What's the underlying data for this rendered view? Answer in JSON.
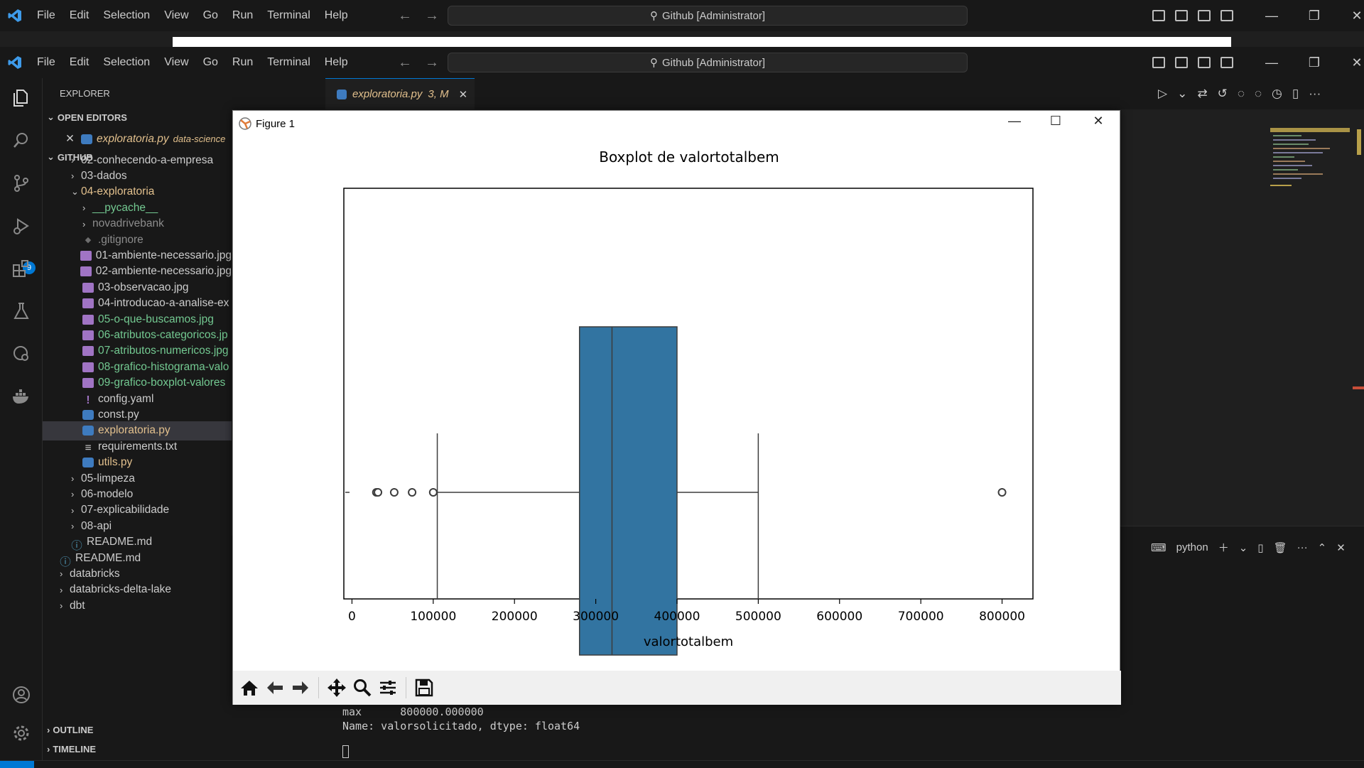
{
  "titlebar": {
    "menu": [
      "File",
      "Edit",
      "Selection",
      "View",
      "Go",
      "Run",
      "Terminal",
      "Help"
    ],
    "command_center": "Github [Administrator]"
  },
  "activity": {
    "scm_badge": "9"
  },
  "sidebar": {
    "header": "EXPLORER",
    "open_editors_label": "OPEN EDITORS",
    "open_editor_file": "exploratoria.py",
    "open_editor_path": "data-science",
    "github_label": "GITHUB",
    "outline_label": "OUTLINE",
    "timeline_label": "TIMELINE",
    "tree": [
      {
        "label": "02-conhecendo-a-empresa",
        "depth": 1,
        "type": "folder",
        "color": "#cccccc"
      },
      {
        "label": "03-dados",
        "depth": 1,
        "type": "folder",
        "color": "#cccccc"
      },
      {
        "label": "04-exploratoria",
        "depth": 1,
        "type": "folder-open",
        "color": "#e2c08d"
      },
      {
        "label": "__pycache__",
        "depth": 2,
        "type": "folder",
        "color": "#73c991"
      },
      {
        "label": "novadrivebank",
        "depth": 2,
        "type": "folder",
        "color": "#8c8c8c"
      },
      {
        "label": ".gitignore",
        "depth": 2,
        "type": "git",
        "color": "#8c8c8c"
      },
      {
        "label": "01-ambiente-necessario.jpg",
        "depth": 2,
        "type": "image",
        "color": "#cccccc"
      },
      {
        "label": "02-ambiente-necessario.jpg",
        "depth": 2,
        "type": "image",
        "color": "#cccccc"
      },
      {
        "label": "03-observacao.jpg",
        "depth": 2,
        "type": "image",
        "color": "#cccccc"
      },
      {
        "label": "04-introducao-a-analise-ex",
        "depth": 2,
        "type": "image",
        "color": "#cccccc"
      },
      {
        "label": "05-o-que-buscamos.jpg",
        "depth": 2,
        "type": "image",
        "color": "#73c991"
      },
      {
        "label": "06-atributos-categoricos.jp",
        "depth": 2,
        "type": "image",
        "color": "#73c991"
      },
      {
        "label": "07-atributos-numericos.jpg",
        "depth": 2,
        "type": "image",
        "color": "#73c991"
      },
      {
        "label": "08-grafico-histograma-valo",
        "depth": 2,
        "type": "image",
        "color": "#73c991"
      },
      {
        "label": "09-grafico-boxplot-valores",
        "depth": 2,
        "type": "image",
        "color": "#73c991"
      },
      {
        "label": "config.yaml",
        "depth": 2,
        "type": "yaml",
        "color": "#cccccc"
      },
      {
        "label": "const.py",
        "depth": 2,
        "type": "python",
        "color": "#cccccc"
      },
      {
        "label": "exploratoria.py",
        "depth": 2,
        "type": "python",
        "color": "#e2c08d",
        "selected": true
      },
      {
        "label": "requirements.txt",
        "depth": 2,
        "type": "text",
        "color": "#cccccc"
      },
      {
        "label": "utils.py",
        "depth": 2,
        "type": "python",
        "color": "#e2c08d"
      },
      {
        "label": "05-limpeza",
        "depth": 1,
        "type": "folder",
        "color": "#cccccc"
      },
      {
        "label": "06-modelo",
        "depth": 1,
        "type": "folder",
        "color": "#cccccc"
      },
      {
        "label": "07-explicabilidade",
        "depth": 1,
        "type": "folder",
        "color": "#cccccc"
      },
      {
        "label": "08-api",
        "depth": 1,
        "type": "folder",
        "color": "#cccccc"
      },
      {
        "label": "README.md",
        "depth": 1,
        "type": "info",
        "color": "#cccccc"
      },
      {
        "label": "README.md",
        "depth": 0,
        "type": "info",
        "color": "#cccccc"
      },
      {
        "label": "databricks",
        "depth": 0,
        "type": "folder",
        "color": "#cccccc"
      },
      {
        "label": "databricks-delta-lake",
        "depth": 0,
        "type": "folder",
        "color": "#cccccc"
      },
      {
        "label": "dbt",
        "depth": 0,
        "type": "folder",
        "color": "#cccccc"
      }
    ]
  },
  "editor": {
    "tab_label": "exploratoria.py",
    "tab_status": "3, M"
  },
  "terminal": {
    "lines": [
      "max      800000.000000",
      "Name: valorsolicitado, dtype: float64"
    ],
    "shell": "python"
  },
  "figure": {
    "window_title": "Figure 1",
    "chart_data": {
      "type": "boxplot",
      "title": "Boxplot de valortotalbem",
      "xlabel": "valortotalbem",
      "xlim": [
        -10000,
        838000
      ],
      "ticks": [
        0,
        100000,
        200000,
        300000,
        400000,
        500000,
        600000,
        700000,
        800000
      ],
      "tick_labels": [
        "0",
        "100000",
        "200000",
        "300000",
        "400000",
        "500000",
        "600000",
        "700000",
        "800000"
      ],
      "box": {
        "q1": 280000,
        "median": 320000,
        "q3": 400000,
        "whisker_low": 105000,
        "whisker_high": 500000
      },
      "outliers": [
        -10000,
        30000,
        32000,
        52000,
        74000,
        100000,
        800000
      ],
      "box_color": "#3274a1"
    }
  }
}
